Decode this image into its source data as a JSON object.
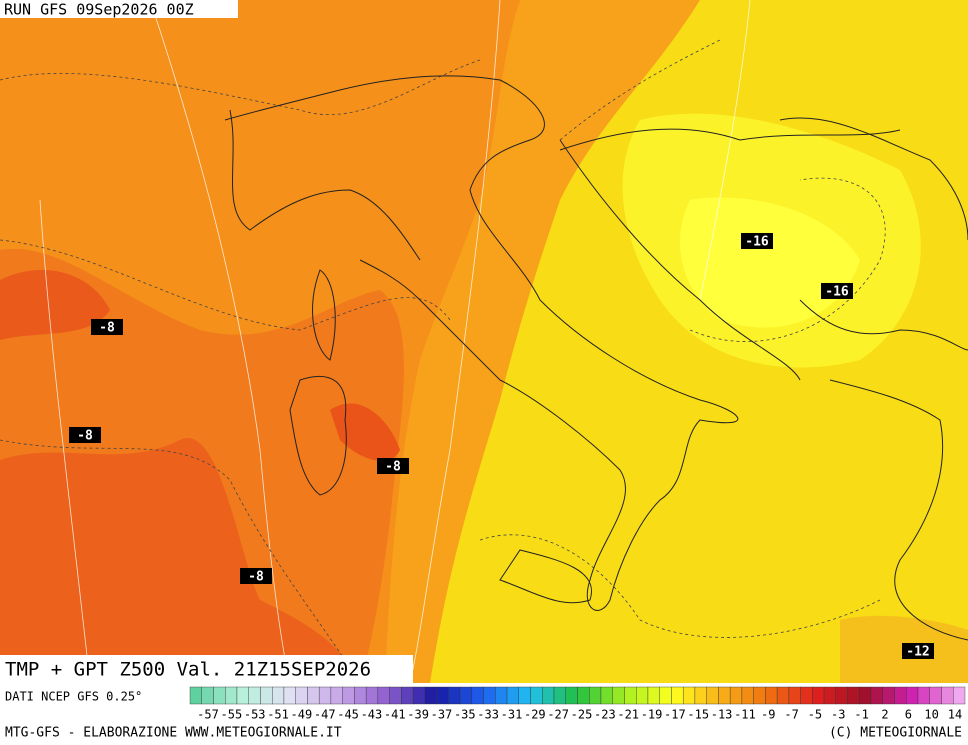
{
  "header": {
    "run": "RUN GFS 09Sep2026 00Z"
  },
  "title": "TMP + GPT Z500 Val. 21Z15SEP2026",
  "source": "DATI NCEP GFS 0.25°",
  "contour_labels": [
    "-16",
    "-16",
    "-8",
    "-8",
    "-8",
    "-8",
    "-12"
  ],
  "colorbar": {
    "labels": [
      "-57",
      "-55",
      "-53",
      "-51",
      "-49",
      "-47",
      "-45",
      "-43",
      "-41",
      "-39",
      "-37",
      "-35",
      "-33",
      "-31",
      "-29",
      "-27",
      "-25",
      "-23",
      "-21",
      "-19",
      "-17",
      "-15",
      "-13",
      "-11",
      "-9",
      "-7",
      "-5",
      "-3",
      "-1",
      "2",
      "6",
      "10",
      "14"
    ]
  },
  "footer": {
    "left": "MTG-GFS - ELABORAZIONE WWW.METEOGIORNALE.IT",
    "right": "(C) METEOGIORNALE"
  }
}
